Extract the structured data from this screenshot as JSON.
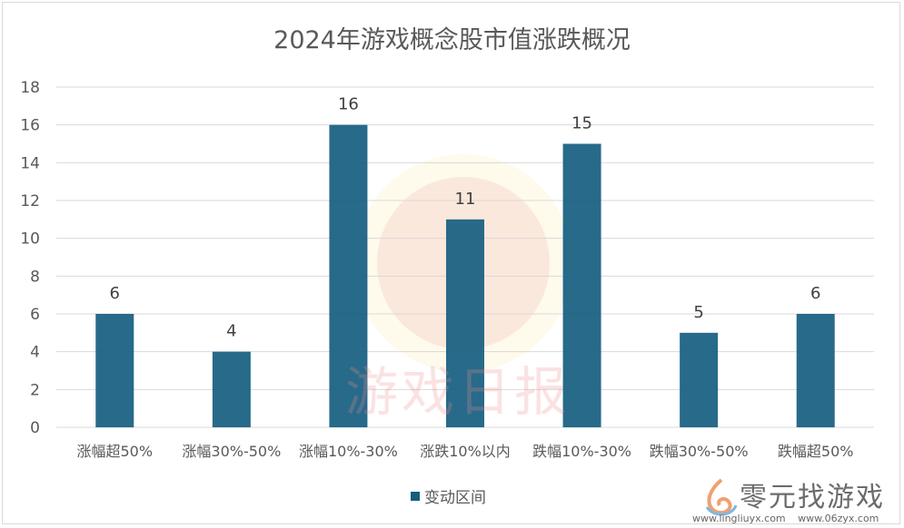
{
  "chart_data": {
    "type": "bar",
    "title": "2024年游戏概念股市值涨跌概况",
    "categories": [
      "涨幅超50%",
      "涨幅30%-50%",
      "涨幅10%-30%",
      "涨跌10%以内",
      "跌幅10%-30%",
      "跌幅30%-50%",
      "跌幅超50%"
    ],
    "series": [
      {
        "name": "变动区间",
        "values": [
          6,
          4,
          16,
          11,
          15,
          5,
          6
        ]
      }
    ],
    "ylim": [
      0,
      18
    ],
    "yticks": [
      0,
      2,
      4,
      6,
      8,
      10,
      12,
      14,
      16,
      18
    ],
    "grid": true,
    "legend": "bottom",
    "color": "#165d80"
  },
  "watermark": {
    "text": "游戏日报"
  },
  "logo": {
    "name": "零元找游戏",
    "urls": "www.lingliuyx.com www.06zyx.com"
  }
}
